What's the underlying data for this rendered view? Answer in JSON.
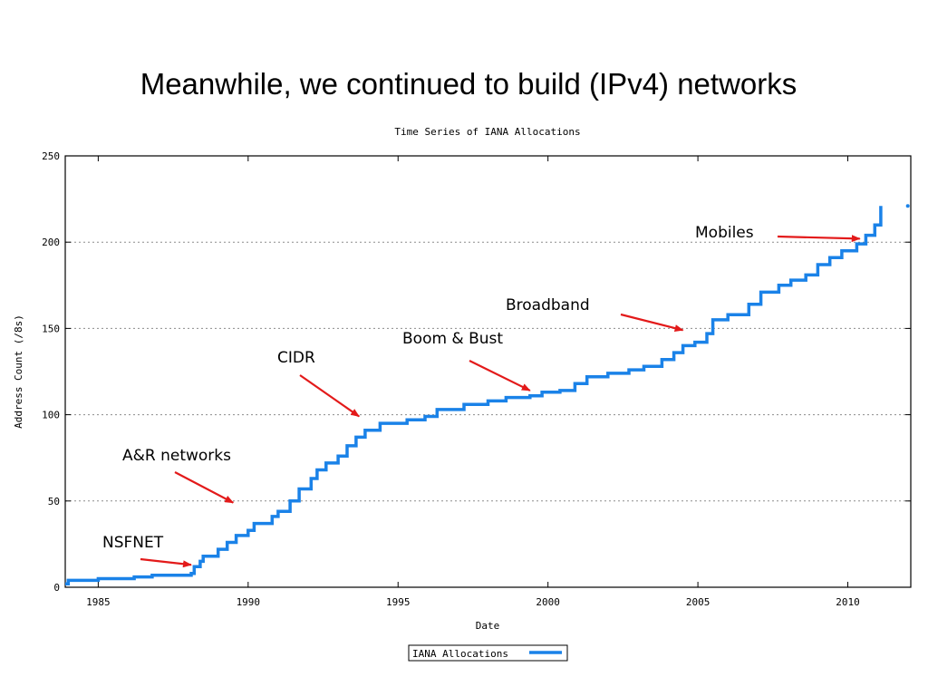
{
  "slide": {
    "title": "Meanwhile, we continued to build (IPv4) networks"
  },
  "chart_data": {
    "type": "line",
    "title": "Time Series of IANA Allocations",
    "xlabel": "Date",
    "ylabel": "Address Count (/8s)",
    "xlim": [
      1983.9,
      2012.1
    ],
    "ylim": [
      0,
      250
    ],
    "x_ticks": [
      1985,
      1990,
      1995,
      2000,
      2005,
      2010
    ],
    "y_ticks": [
      0,
      50,
      100,
      150,
      200,
      250
    ],
    "grid": "horizontal dotted",
    "legend_position": "bottom-center",
    "series": [
      {
        "name": "IANA Allocations",
        "color": "#1a82e8",
        "points": [
          [
            1983.9,
            2
          ],
          [
            1984.0,
            4
          ],
          [
            1985.0,
            5
          ],
          [
            1986.2,
            6
          ],
          [
            1986.8,
            7
          ],
          [
            1988.1,
            8
          ],
          [
            1988.2,
            12
          ],
          [
            1988.4,
            15
          ],
          [
            1988.5,
            18
          ],
          [
            1989.0,
            22
          ],
          [
            1989.3,
            26
          ],
          [
            1989.6,
            30
          ],
          [
            1990.0,
            33
          ],
          [
            1990.2,
            37
          ],
          [
            1990.8,
            41
          ],
          [
            1991.0,
            44
          ],
          [
            1991.4,
            50
          ],
          [
            1991.7,
            57
          ],
          [
            1992.1,
            63
          ],
          [
            1992.3,
            68
          ],
          [
            1992.6,
            72
          ],
          [
            1993.0,
            76
          ],
          [
            1993.3,
            82
          ],
          [
            1993.6,
            87
          ],
          [
            1993.9,
            91
          ],
          [
            1994.4,
            95
          ],
          [
            1995.3,
            97
          ],
          [
            1995.9,
            99
          ],
          [
            1996.3,
            103
          ],
          [
            1997.2,
            106
          ],
          [
            1998.0,
            108
          ],
          [
            1998.6,
            110
          ],
          [
            1999.4,
            111
          ],
          [
            1999.8,
            113
          ],
          [
            2000.4,
            114
          ],
          [
            2000.9,
            118
          ],
          [
            2001.3,
            122
          ],
          [
            2002.0,
            124
          ],
          [
            2002.7,
            126
          ],
          [
            2003.2,
            128
          ],
          [
            2003.8,
            132
          ],
          [
            2004.2,
            136
          ],
          [
            2004.5,
            140
          ],
          [
            2004.9,
            142
          ],
          [
            2005.3,
            147
          ],
          [
            2005.5,
            155
          ],
          [
            2006.0,
            158
          ],
          [
            2006.7,
            164
          ],
          [
            2007.1,
            171
          ],
          [
            2007.7,
            175
          ],
          [
            2008.1,
            178
          ],
          [
            2008.6,
            181
          ],
          [
            2009.0,
            187
          ],
          [
            2009.4,
            191
          ],
          [
            2009.8,
            195
          ],
          [
            2010.3,
            199
          ],
          [
            2010.6,
            204
          ],
          [
            2010.9,
            210
          ],
          [
            2011.1,
            221
          ]
        ]
      }
    ],
    "outlier_point": [
      2012.0,
      221
    ],
    "annotations": [
      {
        "text": "NSFNET",
        "x": 1988.1,
        "y": 13
      },
      {
        "text": "A&R networks",
        "x": 1989.5,
        "y": 49
      },
      {
        "text": "CIDR",
        "x": 1993.7,
        "y": 99
      },
      {
        "text": "Boom & Bust",
        "x": 1999.4,
        "y": 114
      },
      {
        "text": "Broadband",
        "x": 2004.5,
        "y": 149
      },
      {
        "text": "Mobiles",
        "x": 2010.4,
        "y": 202
      }
    ]
  }
}
